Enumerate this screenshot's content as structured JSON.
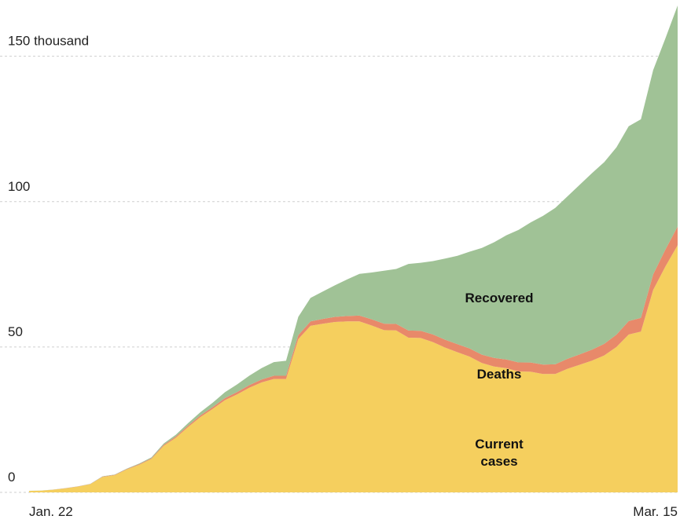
{
  "chart_data": {
    "type": "stacked_area",
    "categories": [
      "Jan. 22",
      null,
      null,
      null,
      null,
      null,
      null,
      null,
      null,
      null,
      null,
      null,
      null,
      null,
      null,
      null,
      null,
      null,
      null,
      null,
      null,
      null,
      null,
      null,
      null,
      null,
      null,
      null,
      null,
      null,
      null,
      null,
      null,
      null,
      null,
      null,
      null,
      null,
      null,
      null,
      null,
      null,
      null,
      null,
      null,
      null,
      null,
      null,
      null,
      null,
      null,
      null,
      null,
      "Mar. 15"
    ],
    "series": [
      {
        "name": "Current cases",
        "color": "#f5cf5e",
        "values": [
          0.5,
          0.6,
          0.9,
          1.4,
          2.0,
          2.8,
          5.3,
          5.9,
          7.9,
          9.5,
          11.5,
          16.0,
          18.8,
          22.5,
          25.9,
          28.7,
          31.7,
          33.7,
          36.0,
          37.8,
          39.0,
          39.0,
          52.7,
          57.3,
          58.0,
          58.6,
          58.8,
          58.8,
          57.4,
          55.8,
          55.7,
          53.2,
          53.1,
          51.7,
          49.8,
          48.2,
          46.7,
          44.5,
          43.3,
          42.7,
          41.6,
          41.5,
          40.7,
          40.7,
          42.5,
          43.9,
          45.3,
          47.1,
          50.0,
          54.3,
          55.3,
          69.6,
          77.7,
          85.0
        ]
      },
      {
        "name": "Deaths",
        "color": "#e8896a",
        "values": [
          0.02,
          0.02,
          0.03,
          0.04,
          0.06,
          0.08,
          0.13,
          0.13,
          0.17,
          0.21,
          0.26,
          0.36,
          0.43,
          0.49,
          0.56,
          0.63,
          0.72,
          0.81,
          0.91,
          1.01,
          1.11,
          1.12,
          1.37,
          1.52,
          1.67,
          1.77,
          1.87,
          2.01,
          2.12,
          2.25,
          2.25,
          2.46,
          2.47,
          2.63,
          2.71,
          2.77,
          2.81,
          2.87,
          2.94,
          3.0,
          3.09,
          3.16,
          3.25,
          3.35,
          3.46,
          3.56,
          3.8,
          3.99,
          4.26,
          4.62,
          4.72,
          5.4,
          5.82,
          6.44
        ]
      },
      {
        "name": "Recovered",
        "color": "#a0c296",
        "values": [
          0.03,
          0.03,
          0.04,
          0.04,
          0.05,
          0.06,
          0.11,
          0.13,
          0.14,
          0.22,
          0.28,
          0.47,
          0.62,
          0.85,
          1.12,
          1.49,
          2.01,
          2.62,
          3.24,
          3.95,
          4.68,
          5.15,
          6.3,
          8.06,
          9.4,
          10.87,
          12.58,
          14.35,
          16.12,
          18.18,
          18.89,
          22.89,
          23.39,
          25.23,
          27.91,
          30.38,
          33.28,
          36.71,
          39.78,
          42.72,
          45.6,
          48.23,
          51.17,
          53.8,
          55.87,
          58.36,
          60.69,
          62.49,
          64.4,
          67.0,
          68.32,
          70.25,
          72.62,
          76.03
        ]
      }
    ],
    "ylim": [
      0,
      168
    ],
    "yticks": [
      0,
      50,
      100,
      {
        "value": 150,
        "label": "150 thousand"
      }
    ],
    "grid": true
  }
}
